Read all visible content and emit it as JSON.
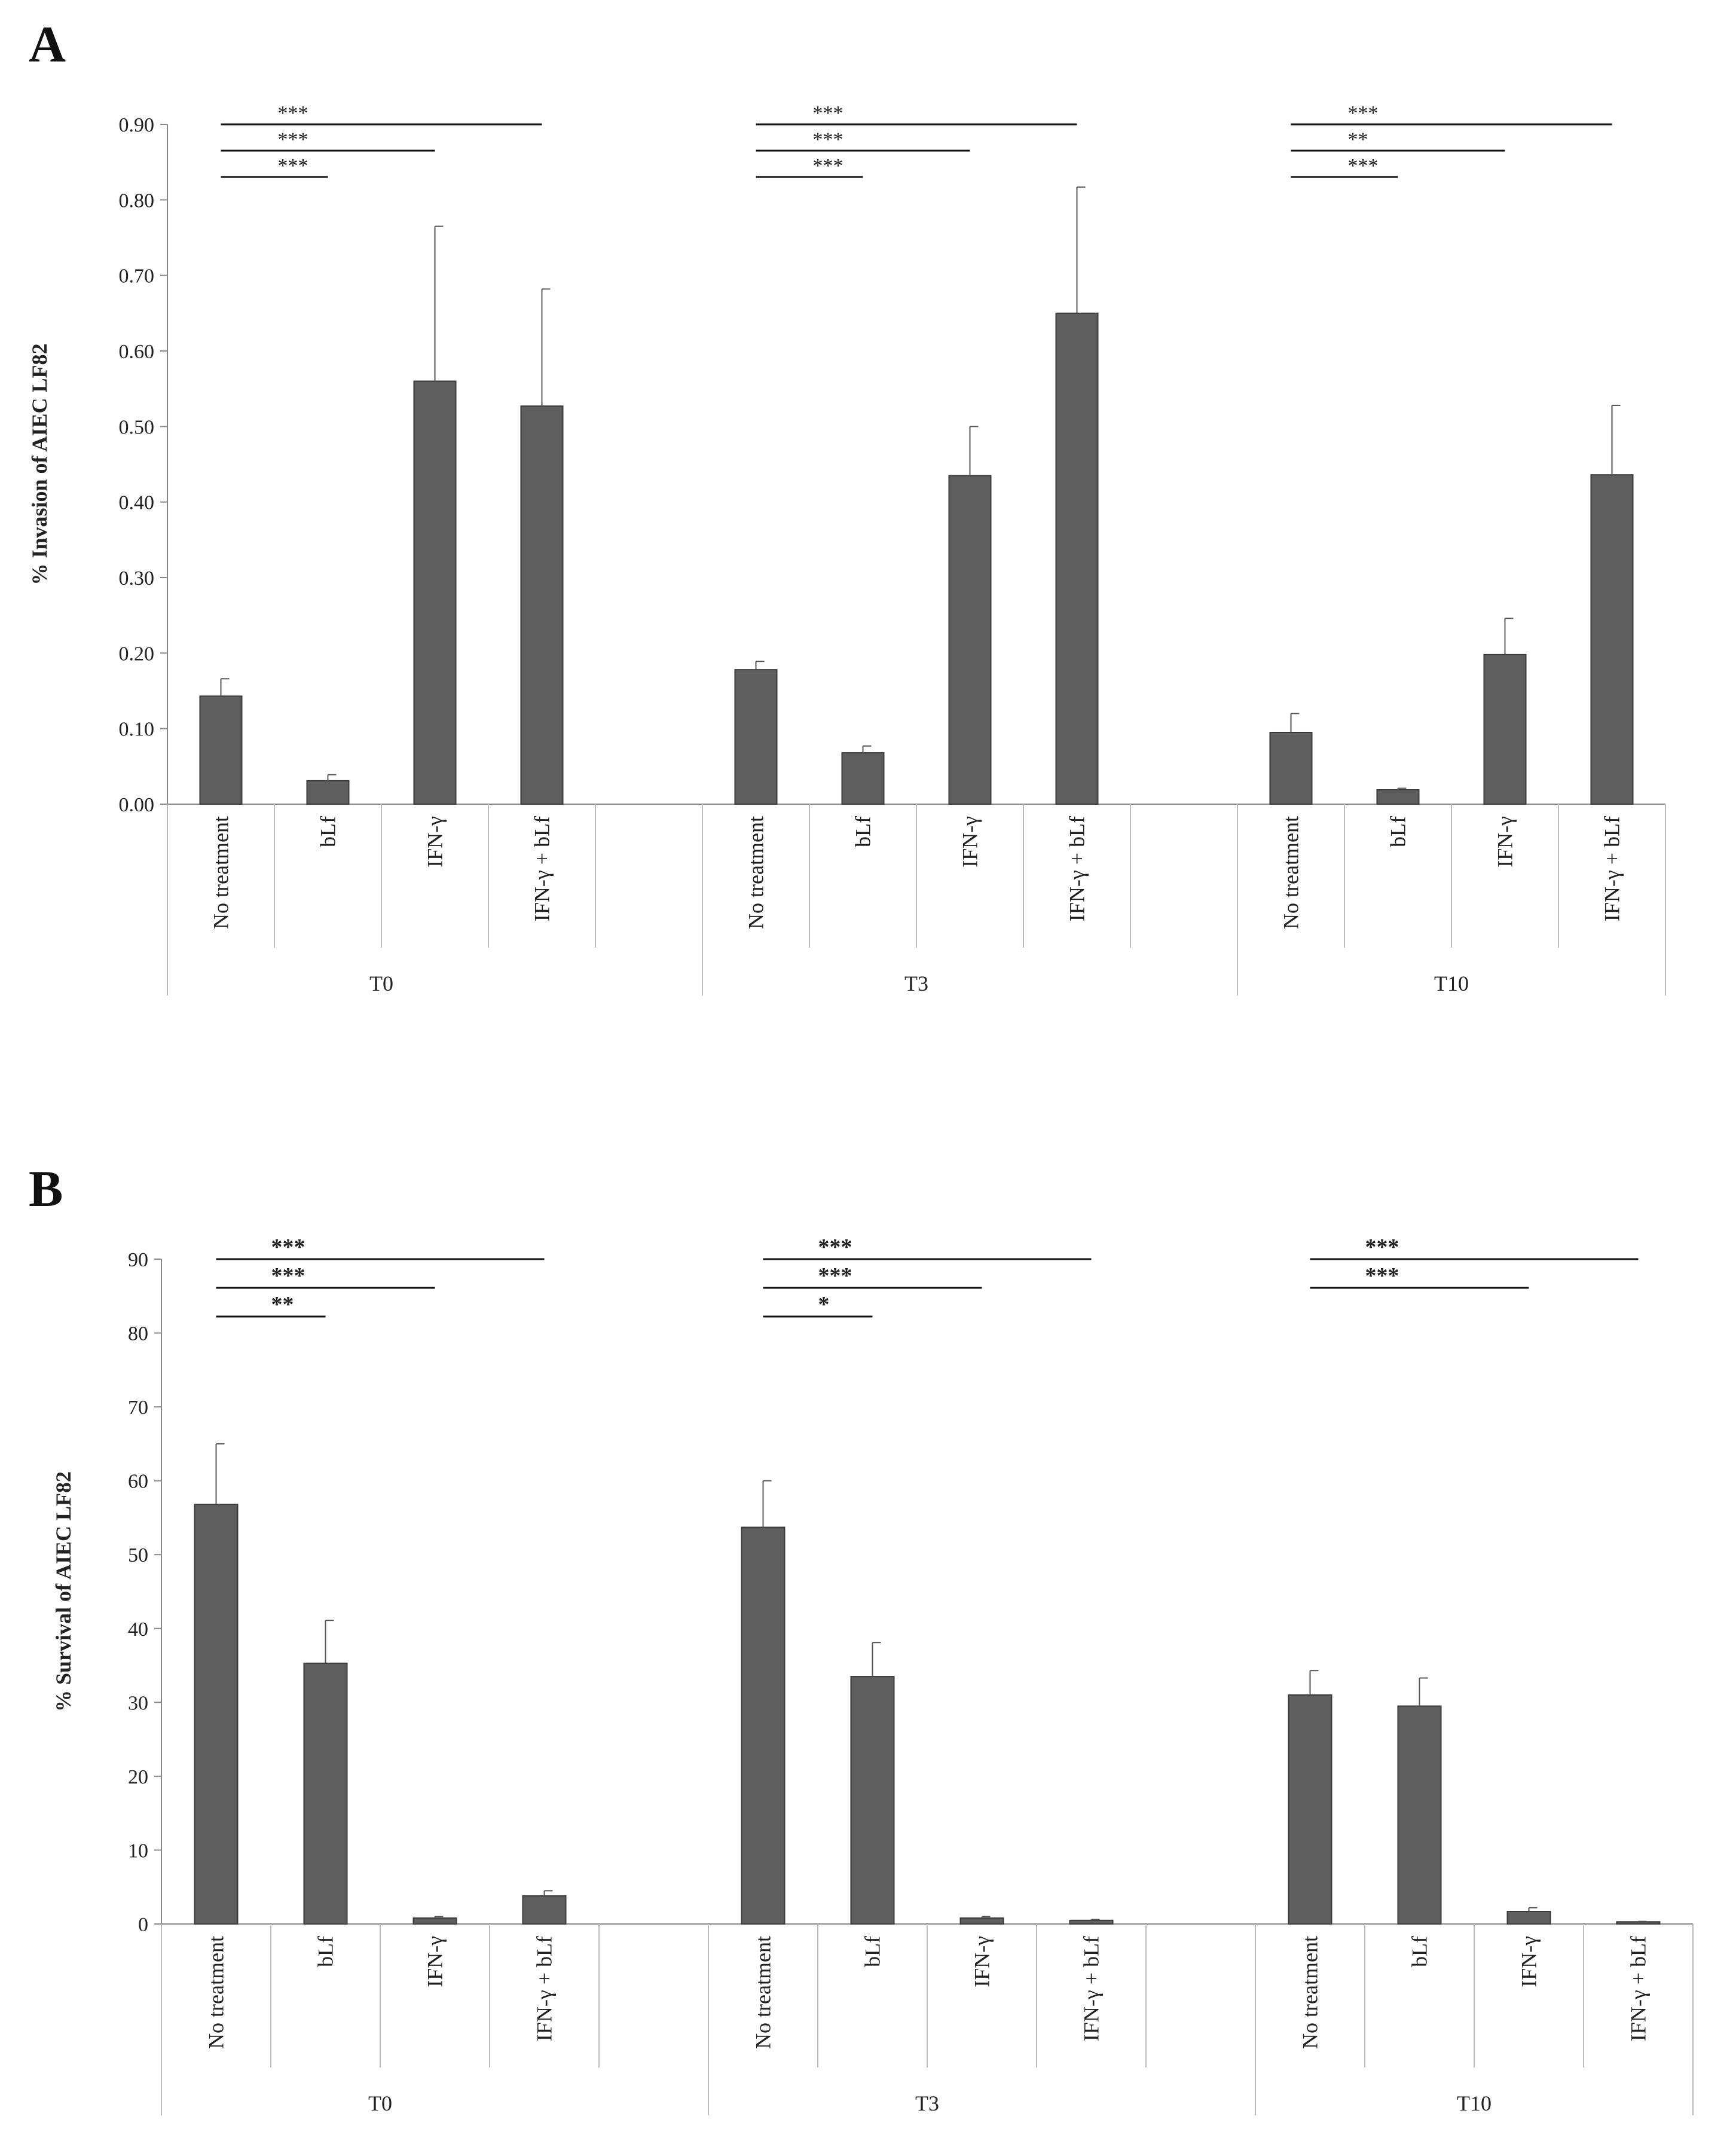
{
  "panels": [
    "A",
    "B"
  ],
  "chart_data": [
    {
      "type": "bar",
      "panel": "A",
      "ylabel": "% Invasion of AIEC LF82",
      "ylim": [
        0,
        0.9
      ],
      "yticks": [
        "0.00",
        "0.10",
        "0.20",
        "0.30",
        "0.40",
        "0.50",
        "0.60",
        "0.70",
        "0.80",
        "0.90"
      ],
      "groups": [
        {
          "name": "T0",
          "categories": [
            "No treatment",
            "bLf",
            "IFN-γ",
            "IFN-γ + bLf"
          ],
          "values": [
            0.143,
            0.031,
            0.56,
            0.527
          ],
          "errors": [
            0.023,
            0.008,
            0.205,
            0.155
          ]
        },
        {
          "name": "T3",
          "categories": [
            "No treatment",
            "bLf",
            "IFN-γ",
            "IFN-γ + bLf"
          ],
          "values": [
            0.178,
            0.068,
            0.435,
            0.65
          ],
          "errors": [
            0.011,
            0.009,
            0.065,
            0.167
          ]
        },
        {
          "name": "T10",
          "categories": [
            "No treatment",
            "bLf",
            "IFN-γ",
            "IFN-γ + bLf"
          ],
          "values": [
            0.095,
            0.019,
            0.198,
            0.436
          ],
          "errors": [
            0.025,
            0.002,
            0.048,
            0.092
          ]
        }
      ],
      "significance": [
        {
          "group": 0,
          "from": 0,
          "to": 3,
          "label": "***",
          "level": 0
        },
        {
          "group": 0,
          "from": 0,
          "to": 2,
          "label": "***",
          "level": 1
        },
        {
          "group": 0,
          "from": 0,
          "to": 1,
          "label": "***",
          "level": 2
        },
        {
          "group": 1,
          "from": 0,
          "to": 3,
          "label": "***",
          "level": 0
        },
        {
          "group": 1,
          "from": 0,
          "to": 2,
          "label": "***",
          "level": 1
        },
        {
          "group": 1,
          "from": 0,
          "to": 1,
          "label": "***",
          "level": 2
        },
        {
          "group": 2,
          "from": 0,
          "to": 3,
          "label": "***",
          "level": 0
        },
        {
          "group": 2,
          "from": 0,
          "to": 2,
          "label": "**",
          "level": 1
        },
        {
          "group": 2,
          "from": 0,
          "to": 1,
          "label": "***",
          "level": 2
        }
      ]
    },
    {
      "type": "bar",
      "panel": "B",
      "ylabel": "% Survival of AIEC LF82",
      "ylim": [
        0,
        90
      ],
      "yticks": [
        "0",
        "10",
        "20",
        "30",
        "40",
        "50",
        "60",
        "70",
        "80",
        "90"
      ],
      "groups": [
        {
          "name": "T0",
          "categories": [
            "No treatment",
            "bLf",
            "IFN-γ",
            "IFN-γ + bLf"
          ],
          "values": [
            56.8,
            35.3,
            0.8,
            3.8
          ],
          "errors": [
            8.2,
            5.8,
            0.2,
            0.7
          ]
        },
        {
          "name": "T3",
          "categories": [
            "No treatment",
            "bLf",
            "IFN-γ",
            "IFN-γ + bLf"
          ],
          "values": [
            53.7,
            33.5,
            0.8,
            0.5
          ],
          "errors": [
            6.3,
            4.6,
            0.2,
            0.1
          ]
        },
        {
          "name": "T10",
          "categories": [
            "No treatment",
            "bLf",
            "IFN-γ",
            "IFN-γ + bLf"
          ],
          "values": [
            31.0,
            29.5,
            1.7,
            0.3
          ],
          "errors": [
            3.3,
            3.8,
            0.5,
            0.05
          ]
        }
      ],
      "significance": [
        {
          "group": 0,
          "from": 0,
          "to": 3,
          "label": "***",
          "level": 0
        },
        {
          "group": 0,
          "from": 0,
          "to": 2,
          "label": "***",
          "level": 1
        },
        {
          "group": 0,
          "from": 0,
          "to": 1,
          "label": "**",
          "level": 2
        },
        {
          "group": 1,
          "from": 0,
          "to": 3,
          "label": "***",
          "level": 0
        },
        {
          "group": 1,
          "from": 0,
          "to": 2,
          "label": "***",
          "level": 1
        },
        {
          "group": 1,
          "from": 0,
          "to": 1,
          "label": "*",
          "level": 2
        },
        {
          "group": 2,
          "from": 0,
          "to": 3,
          "label": "***",
          "level": 0
        },
        {
          "group": 2,
          "from": 0,
          "to": 2,
          "label": "***",
          "level": 1
        }
      ]
    }
  ],
  "colors": {
    "bar": "#5e5e5e",
    "bar_edge": "#3a3a3a",
    "axis": "#888888",
    "text": "#222222"
  }
}
